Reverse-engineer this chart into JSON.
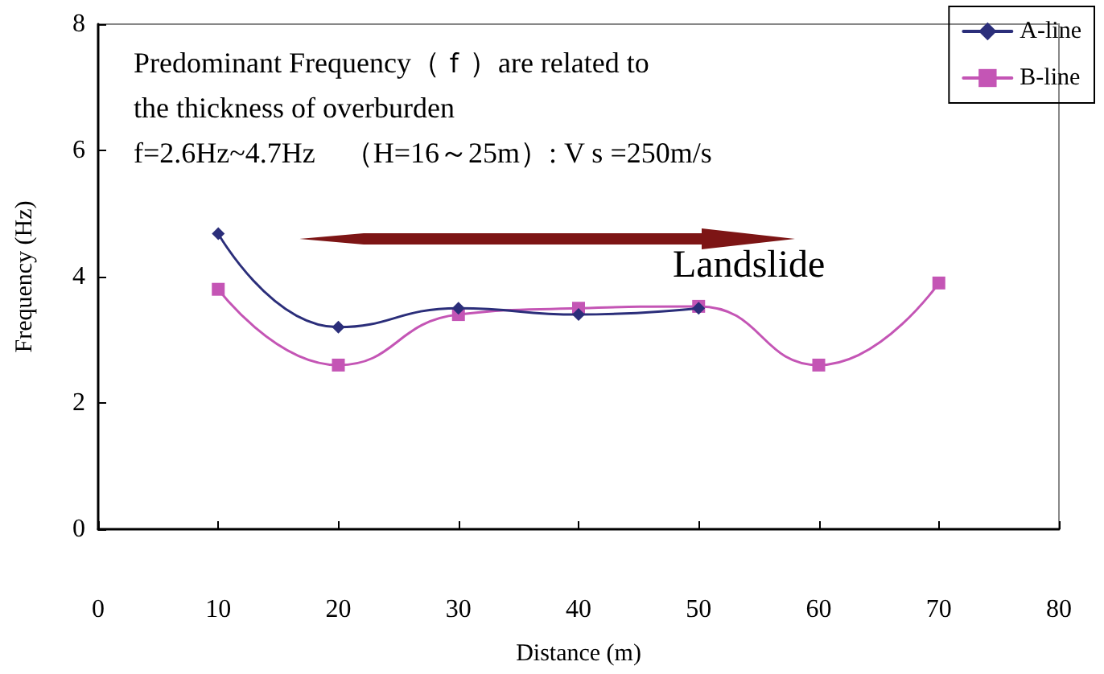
{
  "chart_data": {
    "type": "line",
    "xlabel": "Distance (m)",
    "ylabel": "Frequency (Hz)",
    "xlim": [
      0,
      80
    ],
    "xticks": [
      0,
      10,
      20,
      30,
      40,
      50,
      60,
      70,
      80
    ],
    "ylim": [
      0,
      8
    ],
    "yticks": [
      0,
      2,
      4,
      6,
      8
    ],
    "grid": false,
    "legend": "top right",
    "line_style": "solid",
    "annotations": [
      "Predominant Frequency（ｆ）are related to",
      "the thickness of overburden",
      "f=2.6Hz~4.7Hz　（H=16～25m）: V s =250m/s",
      "Landslide"
    ],
    "series": [
      {
        "name": "A-line",
        "color": "#2b2e7a",
        "marker": "diamond",
        "x": [
          10,
          20,
          30,
          40,
          50
        ],
        "values": [
          4.68,
          3.2,
          3.5,
          3.4,
          3.5
        ]
      },
      {
        "name": "B-line",
        "color": "#c455b5",
        "marker": "square",
        "x": [
          10,
          20,
          30,
          40,
          50,
          60,
          70
        ],
        "values": [
          3.8,
          2.6,
          3.4,
          3.5,
          3.53,
          2.6,
          3.9
        ]
      }
    ]
  }
}
